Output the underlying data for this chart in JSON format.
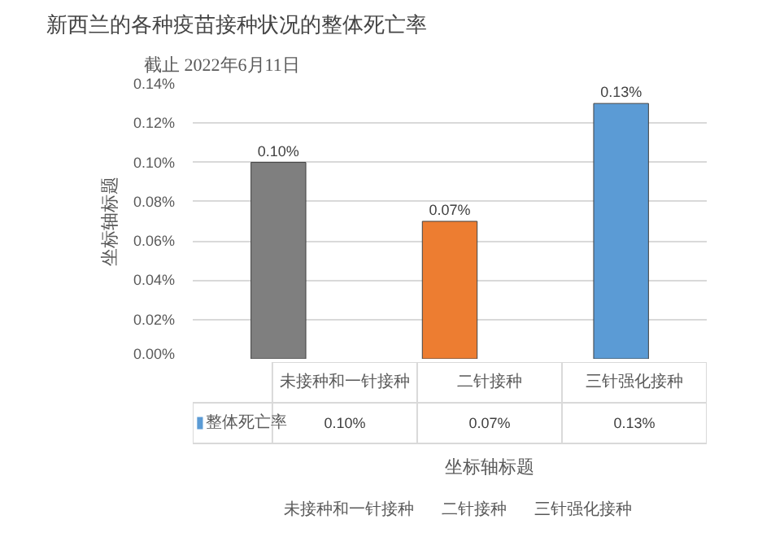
{
  "chart_data": {
    "type": "bar",
    "title": "新西兰的各种疫苗接种状况的整体死亡率",
    "subtitle": "截止 2022年6月11日",
    "xlabel": "坐标轴标题",
    "ylabel": "坐标轴标题",
    "categories": [
      "未接种和一针接种",
      "二针接种",
      "三针强化接种"
    ],
    "series": [
      {
        "name": "整体死亡率",
        "color": "#5b9bd5",
        "colors": [
          "#7f7f7f",
          "#ed7d31",
          "#5b9bd5"
        ],
        "values": [
          0.1,
          0.07,
          0.13
        ],
        "value_labels": [
          "0.10%",
          "0.07%",
          "0.13%"
        ]
      }
    ],
    "ylim": [
      0,
      0.14
    ],
    "yticks": [
      {
        "value": 0,
        "label": "0.00%"
      },
      {
        "value": 0.02,
        "label": "0.02%"
      },
      {
        "value": 0.04,
        "label": "0.04%"
      },
      {
        "value": 0.06,
        "label": "0.06%"
      },
      {
        "value": 0.08,
        "label": "0.08%"
      },
      {
        "value": 0.1,
        "label": "0.10%"
      },
      {
        "value": 0.12,
        "label": "0.12%"
      },
      {
        "value": 0.14,
        "label": "0.14%"
      }
    ],
    "grid": "y",
    "legend": "bottom"
  }
}
